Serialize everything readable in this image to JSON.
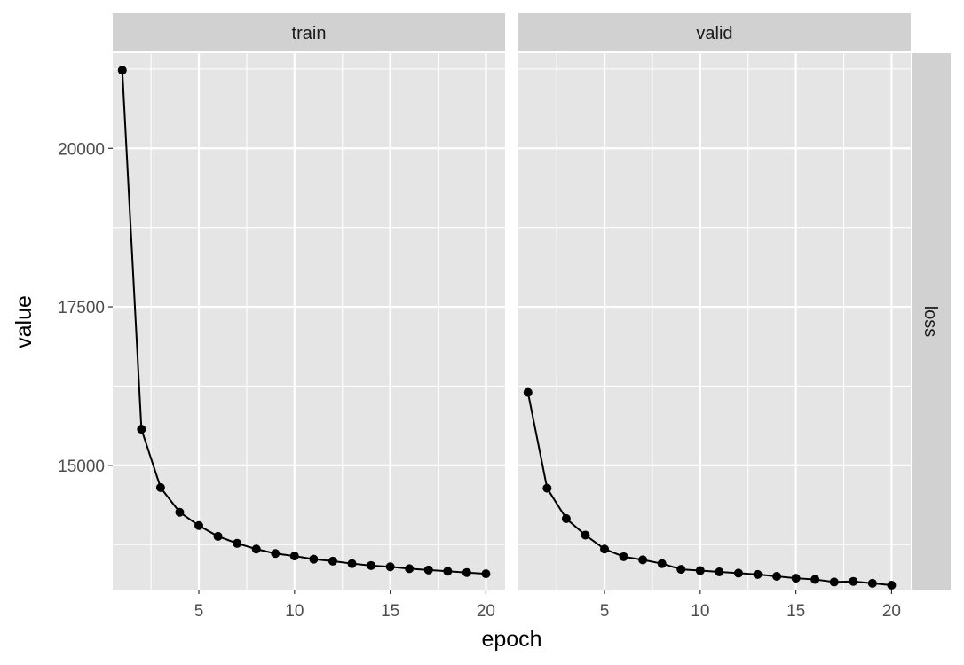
{
  "chart_data": {
    "type": "line",
    "x_label": "epoch",
    "y_label": "value",
    "facet_columns": [
      "train",
      "valid"
    ],
    "facet_rows": [
      "loss"
    ],
    "x_range": [
      0.5,
      21
    ],
    "y_range": [
      13040,
      21500
    ],
    "x_ticks": [
      5,
      10,
      15,
      20
    ],
    "x_minor_ticks": [
      2.5,
      7.5,
      12.5,
      17.5
    ],
    "y_ticks": [
      15000,
      17500,
      20000
    ],
    "y_minor_ticks": [
      13750,
      16250,
      18750,
      21250
    ],
    "grid": true,
    "panels": [
      {
        "strip": "train",
        "points": [
          {
            "x": 1,
            "y": 21230
          },
          {
            "x": 2,
            "y": 15570
          },
          {
            "x": 3,
            "y": 14650
          },
          {
            "x": 4,
            "y": 14260
          },
          {
            "x": 5,
            "y": 14050
          },
          {
            "x": 6,
            "y": 13880
          },
          {
            "x": 7,
            "y": 13770
          },
          {
            "x": 8,
            "y": 13680
          },
          {
            "x": 9,
            "y": 13610
          },
          {
            "x": 10,
            "y": 13570
          },
          {
            "x": 11,
            "y": 13520
          },
          {
            "x": 12,
            "y": 13490
          },
          {
            "x": 13,
            "y": 13450
          },
          {
            "x": 14,
            "y": 13420
          },
          {
            "x": 15,
            "y": 13400
          },
          {
            "x": 16,
            "y": 13370
          },
          {
            "x": 17,
            "y": 13350
          },
          {
            "x": 18,
            "y": 13330
          },
          {
            "x": 19,
            "y": 13310
          },
          {
            "x": 20,
            "y": 13290
          }
        ]
      },
      {
        "strip": "valid",
        "points": [
          {
            "x": 1,
            "y": 16150
          },
          {
            "x": 2,
            "y": 14640
          },
          {
            "x": 3,
            "y": 14160
          },
          {
            "x": 4,
            "y": 13900
          },
          {
            "x": 5,
            "y": 13680
          },
          {
            "x": 6,
            "y": 13560
          },
          {
            "x": 7,
            "y": 13510
          },
          {
            "x": 8,
            "y": 13450
          },
          {
            "x": 9,
            "y": 13360
          },
          {
            "x": 10,
            "y": 13340
          },
          {
            "x": 11,
            "y": 13320
          },
          {
            "x": 12,
            "y": 13300
          },
          {
            "x": 13,
            "y": 13280
          },
          {
            "x": 14,
            "y": 13250
          },
          {
            "x": 15,
            "y": 13220
          },
          {
            "x": 16,
            "y": 13200
          },
          {
            "x": 17,
            "y": 13160
          },
          {
            "x": 18,
            "y": 13170
          },
          {
            "x": 19,
            "y": 13140
          },
          {
            "x": 20,
            "y": 13110
          }
        ]
      }
    ],
    "colors": {
      "panel_background": "#e5e5e5",
      "strip_background": "#d1d1d1",
      "grid": "#ffffff",
      "series": "#000000"
    }
  }
}
